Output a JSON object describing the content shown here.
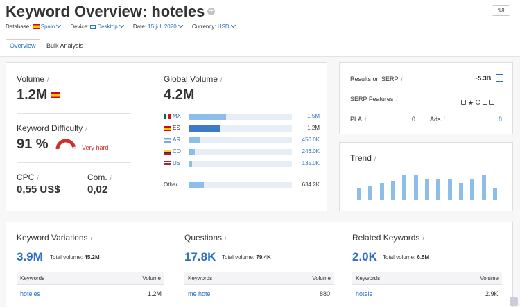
{
  "header": {
    "title_prefix": "Keyword Overview:",
    "keyword": "hoteles",
    "pdf_label": "PDF",
    "filters": [
      {
        "label": "Database:",
        "value": "Spain"
      },
      {
        "label": "Device:",
        "value": "Desktop"
      },
      {
        "label": "Date:",
        "value": "15 jul. 2020"
      },
      {
        "label": "Currency:",
        "value": "USD"
      }
    ],
    "tabs": [
      "Overview",
      "Bulk Analysis"
    ]
  },
  "volume": {
    "label": "Volume",
    "value": "1.2M"
  },
  "difficulty": {
    "label": "Keyword Difficulty",
    "value": "91 %",
    "level": "Very hard",
    "percent": 91
  },
  "cpc": {
    "label": "CPC",
    "value": "0,55 US$"
  },
  "com": {
    "label": "Com.",
    "value": "0,02"
  },
  "global_volume": {
    "label": "Global Volume",
    "value": "4.2M",
    "rows": [
      {
        "code": "MX",
        "value": "1.5M",
        "fraction": 0.36
      },
      {
        "code": "ES",
        "value": "1.2M",
        "fraction": 0.3
      },
      {
        "code": "AR",
        "value": "450.0K",
        "fraction": 0.11
      },
      {
        "code": "CO",
        "value": "246.0K",
        "fraction": 0.06
      },
      {
        "code": "US",
        "value": "135.0K",
        "fraction": 0.035
      }
    ],
    "other": {
      "label": "Other",
      "value": "634.2K",
      "fraction": 0.15
    }
  },
  "serp": {
    "results_label": "Results on SERP",
    "results_value": "~5.3B",
    "features_label": "SERP Features",
    "pla_label": "PLA",
    "pla_value": "0",
    "ads_label": "Ads",
    "ads_value": "8"
  },
  "trend": {
    "label": "Trend",
    "values": [
      0.38,
      0.45,
      0.55,
      0.62,
      0.82,
      0.82,
      0.66,
      0.66,
      0.66,
      0.55,
      0.66,
      0.82,
      0.38
    ]
  },
  "variations": {
    "label": "Keyword Variations",
    "count": "3.9M",
    "total_label": "Total volume:",
    "total": "45.2M",
    "col1": "Keywords",
    "col2": "Volume",
    "first_kw": "hoteles",
    "first_vol": "1.2M"
  },
  "questions": {
    "label": "Questions",
    "count": "17.8K",
    "total_label": "Total volume:",
    "total": "79.4K",
    "col1": "Keywords",
    "col2": "Volume",
    "first_kw": "me hotel",
    "first_vol": "880"
  },
  "related": {
    "label": "Related Keywords",
    "count": "2.0K",
    "total_label": "Total volume:",
    "total": "6.5M",
    "col1": "Keywords",
    "col2": "Volume",
    "first_kw": "hotele",
    "first_vol": "2.9K"
  },
  "colors": {
    "accent": "#2d6fc0",
    "bar": "#8dbde9",
    "danger": "#d0312d"
  }
}
